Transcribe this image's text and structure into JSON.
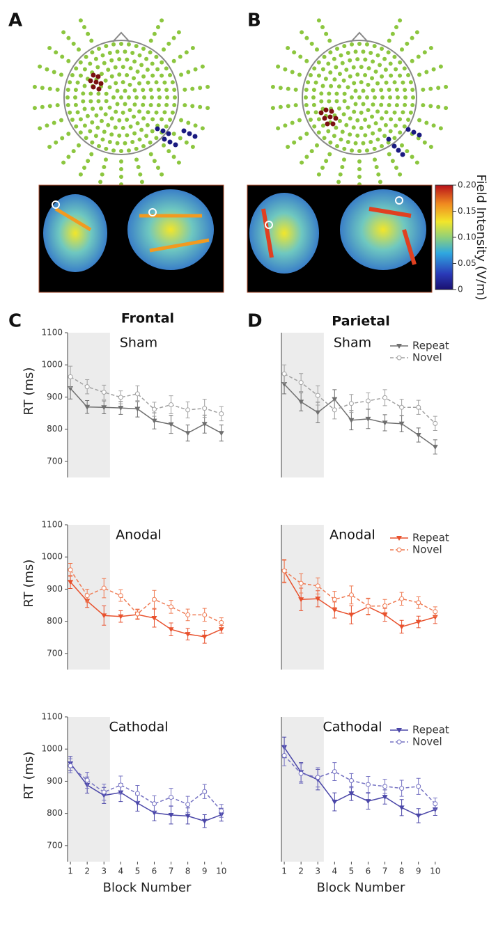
{
  "panel_labels": [
    "A",
    "B",
    "C",
    "D"
  ],
  "colorbar": {
    "label": "Field Intensity (V/m)",
    "lim": [
      0,
      0.2
    ],
    "ticks": [
      0,
      0.05,
      {
        "value": 0.1,
        "label": "0.10"
      },
      0.15,
      {
        "value": 0.2,
        "label": "0.20"
      }
    ]
  },
  "column_titles": [
    "Frontal",
    "Parietal"
  ],
  "chart_data": [
    {
      "type": "line",
      "title": "Sham",
      "ylabel": "RT (ms)",
      "x": [
        1,
        2,
        3,
        4,
        5,
        6,
        7,
        8,
        9,
        10
      ],
      "xlim": [
        0.83,
        10.3
      ],
      "ylim": [
        650,
        1100
      ],
      "yticks": [
        700,
        800,
        900,
        1000,
        1100
      ],
      "highlight_blocks": [
        1,
        3
      ],
      "legend": false,
      "series": [
        {
          "name": "Repeat",
          "color": "#6f6f6f",
          "values": [
            927,
            869,
            868,
            866,
            863,
            826,
            815,
            788,
            816,
            788
          ],
          "errors": [
            33,
            20,
            20,
            20,
            25,
            25,
            28,
            25,
            28,
            25
          ]
        },
        {
          "name": "Novel",
          "color": "#a0a0a0",
          "values": [
            963,
            932,
            915,
            899,
            910,
            862,
            876,
            860,
            865,
            848
          ],
          "errors": [
            33,
            22,
            22,
            20,
            25,
            22,
            28,
            25,
            28,
            22
          ]
        }
      ]
    },
    {
      "type": "line",
      "title": "Sham",
      "x": [
        1,
        2,
        3,
        4,
        5,
        6,
        7,
        8,
        9,
        10
      ],
      "xlim": [
        0.83,
        10.3
      ],
      "ylim": [
        650,
        1100
      ],
      "highlight_blocks": [
        1,
        3
      ],
      "legend": "upper right",
      "series": [
        {
          "name": "Repeat",
          "color": "#6f6f6f",
          "values": [
            940,
            885,
            852,
            893,
            828,
            832,
            820,
            817,
            782,
            745
          ],
          "errors": [
            30,
            28,
            32,
            30,
            30,
            30,
            25,
            25,
            22,
            22
          ]
        },
        {
          "name": "Novel",
          "color": "#a0a0a0",
          "values": [
            972,
            945,
            905,
            860,
            880,
            888,
            898,
            868,
            868,
            818
          ],
          "errors": [
            28,
            28,
            30,
            28,
            28,
            25,
            25,
            25,
            22,
            22
          ]
        }
      ]
    },
    {
      "type": "line",
      "title": "Anodal",
      "ylabel": "RT (ms)",
      "x": [
        1,
        2,
        3,
        4,
        5,
        6,
        7,
        8,
        9,
        10
      ],
      "xlim": [
        0.83,
        10.3
      ],
      "ylim": [
        650,
        1100
      ],
      "yticks": [
        700,
        800,
        900,
        1000,
        1100
      ],
      "highlight_blocks": [
        1,
        3
      ],
      "legend": false,
      "series": [
        {
          "name": "Repeat",
          "color": "#e8512d",
          "values": [
            922,
            863,
            818,
            815,
            821,
            810,
            775,
            760,
            752,
            775
          ],
          "errors": [
            20,
            20,
            30,
            18,
            15,
            28,
            20,
            18,
            20,
            12
          ]
        },
        {
          "name": "Novel",
          "color": "#ef7a52",
          "values": [
            960,
            880,
            903,
            880,
            823,
            868,
            845,
            820,
            820,
            796
          ],
          "errors": [
            20,
            20,
            30,
            18,
            15,
            28,
            20,
            18,
            20,
            15
          ]
        }
      ]
    },
    {
      "type": "line",
      "title": "Anodal",
      "x": [
        1,
        2,
        3,
        4,
        5,
        6,
        7,
        8,
        9,
        10
      ],
      "xlim": [
        0.83,
        10.3
      ],
      "ylim": [
        650,
        1100
      ],
      "highlight_blocks": [
        1,
        3
      ],
      "legend": "upper right",
      "series": [
        {
          "name": "Repeat",
          "color": "#e8512d",
          "values": [
            955,
            868,
            870,
            835,
            820,
            845,
            820,
            783,
            798,
            813
          ],
          "errors": [
            35,
            35,
            25,
            25,
            28,
            25,
            20,
            20,
            18,
            20
          ]
        },
        {
          "name": "Novel",
          "color": "#ef7a52",
          "values": [
            957,
            918,
            910,
            868,
            882,
            847,
            848,
            870,
            858,
            830
          ],
          "errors": [
            35,
            30,
            25,
            25,
            28,
            25,
            20,
            20,
            18,
            15
          ]
        }
      ]
    },
    {
      "type": "line",
      "title": "Cathodal",
      "ylabel": "RT (ms)",
      "xlabel": "Block Number",
      "x": [
        1,
        2,
        3,
        4,
        5,
        6,
        7,
        8,
        9,
        10
      ],
      "xticks": [
        1,
        2,
        3,
        4,
        5,
        6,
        7,
        8,
        9,
        10
      ],
      "xlim": [
        0.83,
        10.3
      ],
      "ylim": [
        650,
        1100
      ],
      "yticks": [
        700,
        800,
        900,
        1000,
        1100
      ],
      "highlight_blocks": [
        1,
        3
      ],
      "legend": false,
      "series": [
        {
          "name": "Repeat",
          "color": "#4a46a8",
          "values": [
            955,
            888,
            856,
            865,
            832,
            802,
            795,
            792,
            776,
            796
          ],
          "errors": [
            22,
            25,
            25,
            28,
            25,
            25,
            28,
            25,
            20,
            20
          ]
        },
        {
          "name": "Novel",
          "color": "#7471c2",
          "values": [
            948,
            903,
            866,
            888,
            862,
            830,
            850,
            828,
            868,
            808
          ],
          "errors": [
            22,
            25,
            25,
            28,
            25,
            25,
            28,
            25,
            22,
            20
          ]
        }
      ]
    },
    {
      "type": "line",
      "title": "Cathodal",
      "xlabel": "Block Number",
      "x": [
        1,
        2,
        3,
        4,
        5,
        6,
        7,
        8,
        9,
        10
      ],
      "xticks": [
        1,
        2,
        3,
        4,
        5,
        6,
        7,
        8,
        9,
        10
      ],
      "xlim": [
        0.83,
        10.3
      ],
      "ylim": [
        650,
        1100
      ],
      "highlight_blocks": [
        1,
        3
      ],
      "legend": "upper right",
      "series": [
        {
          "name": "Repeat",
          "color": "#4a46a8",
          "values": [
            1005,
            928,
            905,
            836,
            862,
            838,
            851,
            818,
            793,
            812
          ],
          "errors": [
            32,
            30,
            32,
            28,
            22,
            25,
            22,
            25,
            22,
            18
          ]
        },
        {
          "name": "Novel",
          "color": "#7471c2",
          "values": [
            980,
            924,
            912,
            930,
            902,
            890,
            884,
            878,
            884,
            830
          ],
          "errors": [
            32,
            30,
            30,
            28,
            22,
            25,
            22,
            25,
            25,
            18
          ]
        }
      ]
    }
  ]
}
